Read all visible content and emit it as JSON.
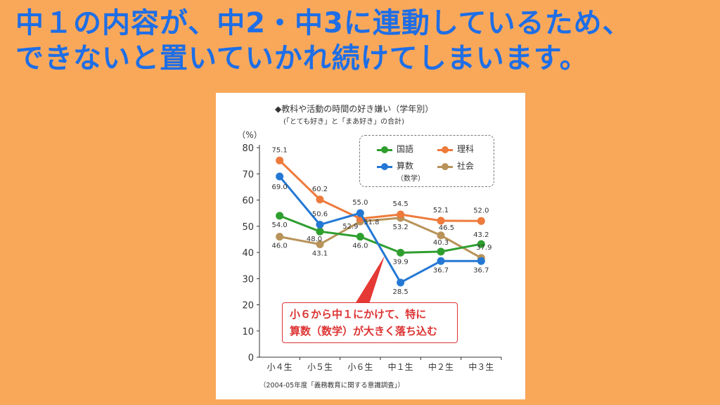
{
  "headline": {
    "line1": "中１の内容が、中2・中3に連動しているため、",
    "line2": "できないと置いていかれ続けてしまいます。"
  },
  "figure": {
    "title": "◆教科や活動の時間の好き嫌い（学年別）",
    "subtitle": "(「とても好き」と「まあ好き」の合計)",
    "source": "（2004-05年度「義務教育に関する意識調査」）",
    "callout_line1": "小６から中１にかけて、特に",
    "callout_line2": "算数（数学）が大きく落ち込む"
  },
  "chart_data": {
    "type": "line",
    "categories": [
      "小４生",
      "小５生",
      "小６生",
      "中１生",
      "中２生",
      "中３生"
    ],
    "ylabel": "（%）",
    "ylim": [
      0,
      80
    ],
    "yticks": [
      0,
      10,
      20,
      30,
      40,
      50,
      60,
      70,
      80
    ],
    "grid": false,
    "legend_position": "top-right",
    "series": [
      {
        "name": "国語",
        "sub": "",
        "color": "#2E9E2E",
        "values": [
          54.0,
          48.0,
          46.0,
          39.9,
          40.3,
          43.2
        ]
      },
      {
        "name": "理科",
        "sub": "",
        "color": "#EE7A3B",
        "values": [
          75.1,
          60.2,
          52.9,
          54.5,
          52.1,
          52.0
        ]
      },
      {
        "name": "算数",
        "sub": "（数学）",
        "color": "#2478D4",
        "values": [
          69.0,
          50.6,
          55.0,
          28.5,
          36.7,
          36.7
        ]
      },
      {
        "name": "社会",
        "sub": "",
        "color": "#B8935A",
        "values": [
          46.0,
          43.1,
          51.8,
          53.2,
          46.5,
          37.9
        ]
      }
    ]
  }
}
